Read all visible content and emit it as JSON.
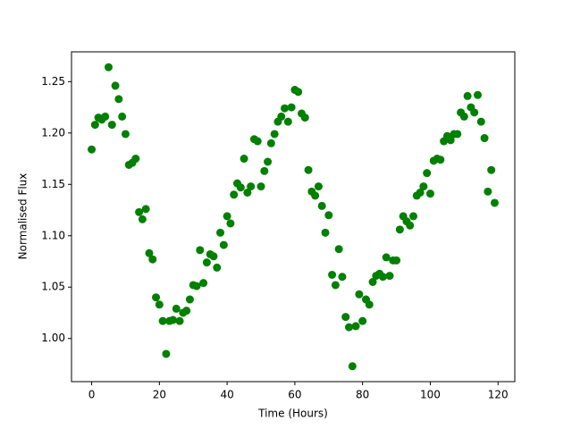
{
  "chart_data": {
    "type": "scatter",
    "xlabel": "Time (Hours)",
    "ylabel": "Normalised Flux",
    "color": "#008000",
    "x": [
      0,
      1,
      2,
      3,
      4,
      5,
      6,
      7,
      8,
      9,
      10,
      11,
      12,
      13,
      14,
      15,
      16,
      17,
      18,
      19,
      20,
      21,
      22,
      23,
      24,
      25,
      26,
      27,
      28,
      29,
      30,
      31,
      32,
      33,
      34,
      35,
      36,
      37,
      38,
      39,
      40,
      41,
      42,
      43,
      44,
      45,
      46,
      47,
      48,
      49,
      50,
      51,
      52,
      53,
      54,
      55,
      56,
      57,
      58,
      59,
      60,
      61,
      62,
      63,
      64,
      65,
      66,
      67,
      68,
      69,
      70,
      71,
      72,
      73,
      74,
      75,
      76,
      77,
      78,
      79,
      80,
      81,
      82,
      83,
      84,
      85,
      86,
      87,
      88,
      89,
      90,
      91,
      92,
      93,
      94,
      95,
      96,
      97,
      98,
      99,
      100,
      101,
      102,
      103,
      104,
      105,
      106,
      107,
      108,
      109,
      110,
      111,
      112,
      113,
      114,
      115,
      116,
      117,
      118,
      119
    ],
    "values": [
      1.184,
      1.208,
      1.215,
      1.213,
      1.216,
      1.264,
      1.208,
      1.246,
      1.233,
      1.216,
      1.199,
      1.169,
      1.171,
      1.175,
      1.123,
      1.116,
      1.126,
      1.083,
      1.077,
      1.04,
      1.033,
      1.017,
      0.985,
      1.017,
      1.018,
      1.029,
      1.017,
      1.025,
      1.027,
      1.038,
      1.052,
      1.051,
      1.086,
      1.054,
      1.074,
      1.082,
      1.08,
      1.069,
      1.103,
      1.091,
      1.119,
      1.112,
      1.14,
      1.151,
      1.147,
      1.175,
      1.142,
      1.148,
      1.194,
      1.192,
      1.148,
      1.163,
      1.172,
      1.19,
      1.199,
      1.211,
      1.216,
      1.224,
      1.211,
      1.225,
      1.242,
      1.24,
      1.219,
      1.215,
      1.164,
      1.143,
      1.139,
      1.148,
      1.129,
      1.103,
      1.12,
      1.062,
      1.052,
      1.087,
      1.06,
      1.021,
      1.011,
      0.973,
      1.012,
      1.043,
      1.017,
      1.038,
      1.033,
      1.055,
      1.061,
      1.063,
      1.06,
      1.079,
      1.061,
      1.076,
      1.076,
      1.106,
      1.119,
      1.114,
      1.11,
      1.119,
      1.139,
      1.142,
      1.148,
      1.161,
      1.141,
      1.173,
      1.175,
      1.174,
      1.192,
      1.197,
      1.193,
      1.199,
      1.199,
      1.22,
      1.216,
      1.236,
      1.225,
      1.22,
      1.237,
      1.211,
      1.195,
      1.143,
      1.164,
      1.132
    ],
    "xlim": [
      -5.95,
      124.95
    ],
    "xticks": [
      0,
      20,
      40,
      60,
      80,
      100,
      120
    ],
    "ylim": [
      0.958,
      1.279
    ],
    "yticks": [
      {
        "value": 1,
        "label": "1.00"
      },
      1.05,
      {
        "value": 1.1,
        "label": "1.10"
      },
      1.15,
      {
        "value": 1.2,
        "label": "1.20"
      },
      1.25
    ]
  }
}
